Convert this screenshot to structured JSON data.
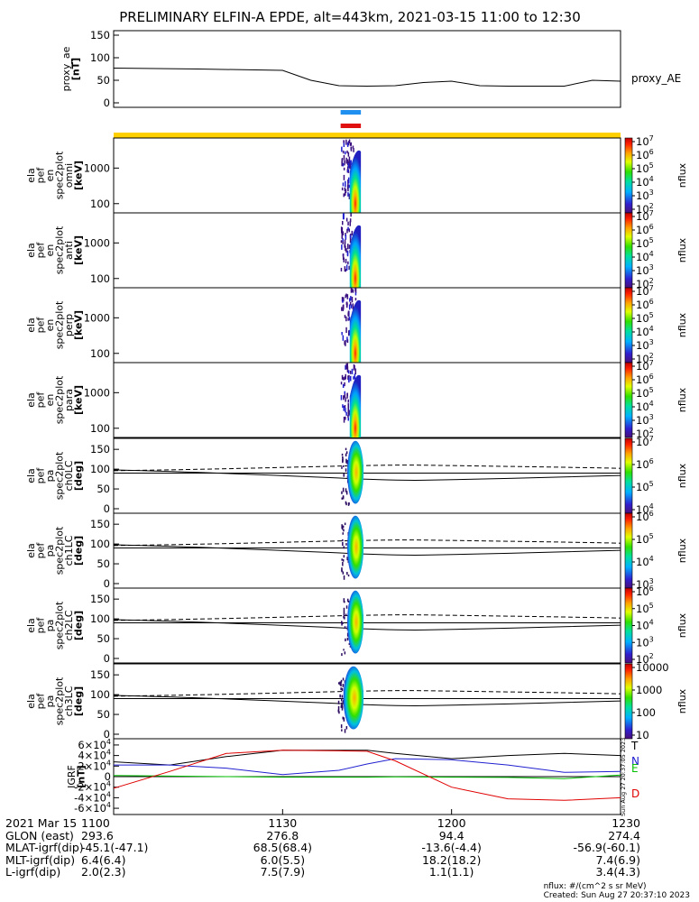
{
  "title": "PRELIMINARY ELFIN-A EPDE, alt=443km, 2021-03-15 11:00 to 12:30",
  "chart_data": [
    {
      "type": "line",
      "id": "proxy_ae",
      "ylabel_lines": [
        "proxy_ae",
        "[nT]"
      ],
      "legend": "proxy_AE",
      "ylim": [
        0,
        150
      ],
      "yticks": [
        "0",
        "50",
        "100",
        "150"
      ],
      "x_minutes": [
        0,
        15,
        30,
        35,
        40,
        45,
        50,
        55,
        60,
        65,
        70,
        75,
        80,
        85,
        90
      ],
      "values": [
        77,
        75,
        72,
        50,
        38,
        37,
        38,
        45,
        48,
        38,
        37,
        37,
        37,
        50,
        48
      ]
    },
    {
      "type": "bar",
      "id": "science-zone-bars",
      "bars": [
        {
          "color": "#2090f0",
          "x_range_minutes": [
            40.3,
            43.9
          ]
        },
        {
          "color": "#e01010",
          "x_range_minutes": [
            40.3,
            43.9
          ]
        },
        {
          "color": "#ffd000",
          "x_range_minutes": [
            0,
            90
          ]
        }
      ]
    },
    {
      "type": "heatmap",
      "id": "spec-omni",
      "ylabel_lines": [
        "ela",
        "pef",
        "en",
        "spec2plot",
        "omni",
        "[keV]"
      ],
      "y_log": true,
      "ylim": [
        55,
        7000
      ],
      "yticks": [
        "100",
        "1000"
      ],
      "colorbar": {
        "label": "nflux",
        "ticks": [
          "10^2",
          "10^3",
          "10^4",
          "10^5",
          "10^6",
          "10^7"
        ]
      },
      "activity_minutes": [
        40.3,
        43.9
      ]
    },
    {
      "type": "heatmap",
      "id": "spec-anti",
      "ylabel_lines": [
        "ela",
        "pef",
        "en",
        "spec2plot",
        "anti",
        "[keV]"
      ],
      "y_log": true,
      "ylim": [
        55,
        7000
      ],
      "yticks": [
        "100",
        "1000"
      ],
      "colorbar": {
        "label": "nflux",
        "ticks": [
          "10^2",
          "10^3",
          "10^4",
          "10^5",
          "10^6",
          "10^7"
        ]
      },
      "activity_minutes": [
        40.3,
        43.9
      ]
    },
    {
      "type": "heatmap",
      "id": "spec-perp",
      "ylabel_lines": [
        "ela",
        "pef",
        "en",
        "spec2plot",
        "perp",
        "[keV]"
      ],
      "y_log": true,
      "ylim": [
        55,
        7000
      ],
      "yticks": [
        "100",
        "1000"
      ],
      "colorbar": {
        "label": "nflux",
        "ticks": [
          "10^2",
          "10^3",
          "10^4",
          "10^5",
          "10^6",
          "10^7"
        ]
      },
      "activity_minutes": [
        40.3,
        43.9
      ]
    },
    {
      "type": "heatmap",
      "id": "spec-para",
      "ylabel_lines": [
        "ela",
        "pef",
        "en",
        "spec2plot",
        "para",
        "[keV]"
      ],
      "y_log": true,
      "ylim": [
        55,
        7000
      ],
      "yticks": [
        "100",
        "1000"
      ],
      "colorbar": {
        "label": "nflux",
        "ticks": [
          "10^2",
          "10^3",
          "10^4",
          "10^5",
          "10^6",
          "10^7"
        ]
      },
      "activity_minutes": [
        40.3,
        43.9
      ]
    },
    {
      "type": "heatmap",
      "id": "pa-ch0",
      "ylabel_lines": [
        "ela",
        "pef",
        "pa",
        "spec2plot",
        "ch0LC",
        "[deg]"
      ],
      "ylim": [
        0,
        180
      ],
      "yticks": [
        "0",
        "50",
        "100",
        "150"
      ],
      "colorbar": {
        "label": "nflux",
        "ticks": [
          "10^4",
          "10^5",
          "10^6",
          "10^7"
        ]
      },
      "activity_minutes": [
        41.0,
        43.9
      ]
    },
    {
      "type": "heatmap",
      "id": "pa-ch1",
      "ylabel_lines": [
        "ela",
        "pef",
        "pa",
        "spec2plot",
        "ch1LC",
        "[deg]"
      ],
      "ylim": [
        0,
        180
      ],
      "yticks": [
        "0",
        "50",
        "100",
        "150"
      ],
      "colorbar": {
        "label": "nflux",
        "ticks": [
          "10^3",
          "10^4",
          "10^5",
          "10^6"
        ]
      },
      "activity_minutes": [
        41.0,
        43.9
      ]
    },
    {
      "type": "heatmap",
      "id": "pa-ch2",
      "ylabel_lines": [
        "ela",
        "pef",
        "pa",
        "spec2plot",
        "ch2LC",
        "[deg]"
      ],
      "ylim": [
        0,
        180
      ],
      "yticks": [
        "0",
        "50",
        "100",
        "150"
      ],
      "colorbar": {
        "label": "nflux",
        "ticks": [
          "10^2",
          "10^3",
          "10^4",
          "10^5",
          "10^6"
        ]
      },
      "activity_minutes": [
        41.0,
        43.9
      ]
    },
    {
      "type": "heatmap",
      "id": "pa-ch3",
      "ylabel_lines": [
        "ela",
        "pef",
        "pa",
        "spec2plot",
        "ch3LC",
        "[deg]"
      ],
      "ylim": [
        0,
        180
      ],
      "yticks": [
        "0",
        "50",
        "100",
        "150"
      ],
      "colorbar": {
        "label": "nflux",
        "ticks": [
          "10",
          "100",
          "1000",
          "10000"
        ]
      },
      "activity_minutes": [
        40.3,
        43.9
      ]
    },
    {
      "type": "line",
      "id": "igrf",
      "ylabel_lines": [
        "IGRF",
        "[nT]"
      ],
      "ylim": [
        -65000,
        65000
      ],
      "yticks": [
        "-6×10^4",
        "-4×10^4",
        "-2×10^4",
        "0",
        "2×10^4",
        "4×10^4",
        "6×10^4"
      ],
      "x_minutes": [
        0,
        10,
        20,
        30,
        40,
        45,
        50,
        60,
        70,
        80,
        90
      ],
      "series": [
        {
          "name": "T",
          "color": "#000000",
          "values": [
            28000,
            22000,
            38000,
            50000,
            50000,
            50000,
            44000,
            34000,
            40000,
            44000,
            40000
          ]
        },
        {
          "name": "N",
          "color": "#2020d0",
          "values": [
            22000,
            22000,
            16000,
            4000,
            12000,
            24000,
            34000,
            32000,
            22000,
            8000,
            10000
          ]
        },
        {
          "name": "E",
          "color": "#00c000",
          "values": [
            2000,
            1000,
            0,
            -1000,
            -1000,
            -1000,
            -500,
            -1000,
            -1500,
            -4000,
            3000
          ]
        },
        {
          "name": "D",
          "color": "#e00000",
          "values": [
            -22000,
            10000,
            44000,
            50000,
            49000,
            48000,
            30000,
            -20000,
            -42000,
            -45000,
            -40000
          ]
        }
      ]
    }
  ],
  "time_axis": {
    "row_labels": [
      "2021 Mar 15",
      "GLON (east)",
      "MLAT-igrf(dip)",
      "MLT-igrf(dip)",
      "L-igrf(dip)"
    ],
    "columns": [
      {
        "time": "1100",
        "vals": [
          "293.6",
          "-45.1(-47.1)",
          "6.4(6.4)",
          "2.0(2.3)"
        ]
      },
      {
        "time": "1130",
        "vals": [
          "276.8",
          "68.5(68.4)",
          "6.0(5.5)",
          "7.5(7.9)"
        ]
      },
      {
        "time": "1200",
        "vals": [
          "94.4",
          "-13.6(-4.4)",
          "18.2(18.2)",
          "1.1(1.1)"
        ]
      },
      {
        "time": "1230",
        "vals": [
          "274.4",
          "-56.9(-60.1)",
          "7.4(6.9)",
          "3.4(4.3)"
        ]
      }
    ]
  },
  "side_stamp": "Sun Aug 27 20:37:05 2023",
  "footer": {
    "units": "nflux: #/(cm^2 s sr MeV)",
    "created": "Created: Sun Aug 27 20:37:10 2023"
  }
}
